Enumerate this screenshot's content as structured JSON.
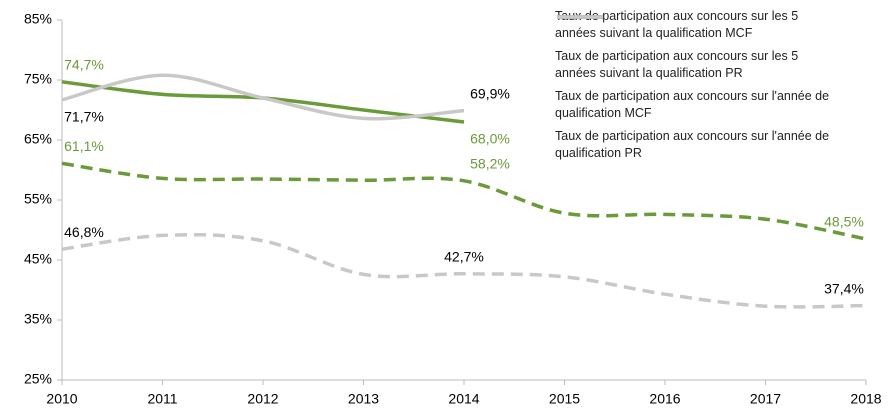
{
  "chart_data": {
    "type": "line",
    "categories": [
      "2010",
      "2011",
      "2012",
      "2013",
      "2014",
      "2015",
      "2016",
      "2017",
      "2018"
    ],
    "series": [
      {
        "name": "Taux de participation aux concours sur les 5 années suivant la qualification MCF",
        "color": "#6a9a3a",
        "dashed": false,
        "label_color": "#6a9a3a",
        "values": [
          74.7,
          72.6,
          72.0,
          70.0,
          68.0,
          null,
          null,
          null,
          null
        ],
        "value_labels": [
          "74,7%",
          null,
          null,
          null,
          "68,0%",
          null,
          null,
          null,
          null
        ]
      },
      {
        "name": "Taux de participation aux concours sur les 5 années suivant la qualification PR",
        "color": "#c8c8c8",
        "dashed": false,
        "label_color": "#000000",
        "values": [
          71.7,
          75.8,
          72.0,
          68.6,
          69.9,
          null,
          null,
          null,
          null
        ],
        "value_labels": [
          "71,7%",
          null,
          null,
          null,
          "69,9%",
          null,
          null,
          null,
          null
        ]
      },
      {
        "name": "Taux de participation aux concours sur l'année de qualification MCF",
        "color": "#6a9a3a",
        "dashed": true,
        "label_color": "#6a9a3a",
        "values": [
          61.1,
          58.6,
          58.5,
          58.3,
          58.2,
          52.8,
          52.6,
          51.8,
          48.5
        ],
        "value_labels": [
          "61,1%",
          null,
          null,
          null,
          "58,2%",
          null,
          null,
          null,
          "48,5%"
        ]
      },
      {
        "name": "Taux de participation aux concours sur l'année de qualification PR",
        "color": "#c8c8c8",
        "dashed": true,
        "label_color": "#000000",
        "values": [
          46.8,
          49.1,
          48.2,
          42.6,
          42.7,
          42.2,
          39.3,
          37.3,
          37.4
        ],
        "value_labels": [
          "46,8%",
          null,
          null,
          null,
          "42,7%",
          null,
          null,
          null,
          "37,4%"
        ]
      }
    ],
    "ylim": [
      25,
      85
    ],
    "yticks": [
      {
        "value": 25,
        "label": "25%"
      },
      {
        "value": 35,
        "label": "35%"
      },
      {
        "value": 45,
        "label": "45%"
      },
      {
        "value": 55,
        "label": "55%"
      },
      {
        "value": 65,
        "label": "65%"
      },
      {
        "value": 75,
        "label": "75%"
      },
      {
        "value": 85,
        "label": "85%"
      }
    ],
    "legend": "top-right"
  }
}
